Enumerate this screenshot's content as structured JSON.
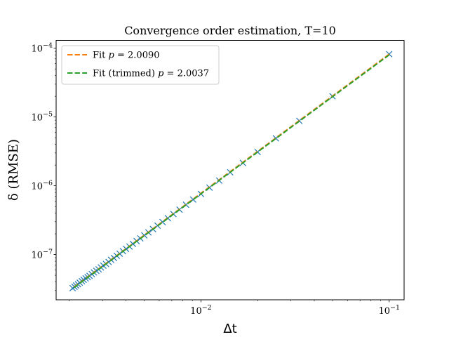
{
  "chart_data": {
    "type": "scatter",
    "title": "Convergence order estimation, T=10",
    "xlabel": "Δt",
    "ylabel": "δ (RMSE)",
    "xscale": "log",
    "yscale": "log",
    "xlim": [
      0.0017,
      0.12
    ],
    "ylim": [
      2.2e-08,
      0.00013
    ],
    "x_ticks": [
      {
        "value": 0.01,
        "base": "10",
        "exp": "−2"
      },
      {
        "value": 0.1,
        "base": "10",
        "exp": "−1"
      }
    ],
    "y_ticks": [
      {
        "value": 1e-07,
        "base": "10",
        "exp": "−7"
      },
      {
        "value": 1e-06,
        "base": "10",
        "exp": "−6"
      },
      {
        "value": 1e-05,
        "base": "10",
        "exp": "−5"
      },
      {
        "value": 0.0001,
        "base": "10",
        "exp": "−4"
      }
    ],
    "grid": false,
    "legend_position": "top-left",
    "series": [
      {
        "kind": "markers",
        "marker": "x",
        "color": "#1f77b4",
        "x": [
          0.1,
          0.05,
          0.0333,
          0.025,
          0.02,
          0.0167,
          0.0143,
          0.0125,
          0.0111,
          0.01,
          0.00909,
          0.00833,
          0.00769,
          0.00714,
          0.00667,
          0.00625,
          0.00588,
          0.00556,
          0.00526,
          0.005,
          0.00476,
          0.00455,
          0.00435,
          0.00417,
          0.004,
          0.00385,
          0.0037,
          0.00357,
          0.00345,
          0.00333,
          0.00323,
          0.00313,
          0.00303,
          0.00294,
          0.00286,
          0.00278,
          0.0027,
          0.00263,
          0.00256,
          0.0025,
          0.00244,
          0.00238,
          0.00233,
          0.00227,
          0.00222,
          0.00217,
          0.00213,
          0.00208
        ],
        "y": [
          8.2e-05,
          2e-05,
          8.8e-06,
          4.9e-06,
          3.1e-06,
          2.15e-06,
          1.57e-06,
          1.19e-06,
          9.4e-07,
          7.6e-07,
          6.3e-07,
          5.3e-07,
          4.5e-07,
          3.88e-07,
          3.38e-07,
          2.97e-07,
          2.63e-07,
          2.35e-07,
          2.1e-07,
          1.9e-07,
          1.72e-07,
          1.57e-07,
          1.43e-07,
          1.31e-07,
          1.21e-07,
          1.12e-07,
          1.03e-07,
          9.6e-08,
          8.9e-08,
          8.4e-08,
          7.8e-08,
          7.3e-08,
          6.9e-08,
          6.5e-08,
          6.1e-08,
          5.8e-08,
          5.5e-08,
          5.2e-08,
          4.9e-08,
          4.7e-08,
          4.5e-08,
          4.3e-08,
          4.1e-08,
          3.9e-08,
          3.7e-08,
          3.55e-08,
          3.4e-08,
          3.25e-08
        ]
      },
      {
        "kind": "line",
        "name": "Fit $p = 2.0090$",
        "color": "#ff7f0e",
        "dash": "dashed",
        "x": [
          0.1,
          0.00208
        ],
        "y": [
          8.2e-05,
          3.25e-08
        ]
      },
      {
        "kind": "line",
        "name": "Fit (trimmed) $p = 2.0037$",
        "color": "#2ca02c",
        "dash": "dashed",
        "x": [
          0.1,
          0.00208
        ],
        "y": [
          8e-05,
          3.2e-08
        ]
      }
    ],
    "legend": [
      {
        "prefix": "Fit ",
        "math_var": "p",
        "math_rest": " = 2.0090",
        "color": "#ff7f0e"
      },
      {
        "prefix": "Fit (trimmed) ",
        "math_var": "p",
        "math_rest": " = 2.0037",
        "color": "#2ca02c"
      }
    ]
  }
}
